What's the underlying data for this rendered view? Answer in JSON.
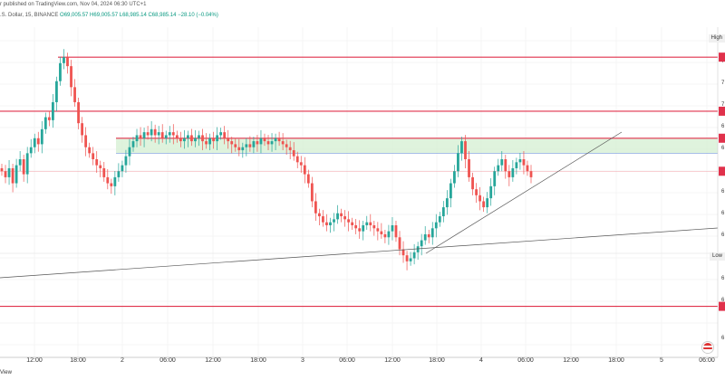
{
  "header": {
    "publisher": "r published on TradingView.com, Nov 04, 2024 06:30 UTC+1",
    "symbol": ".S. Dollar, 15, BINANCE",
    "ohlc": "O69,005.57 H69,005.57 L68,985.14 C68,985.14 −28.10 (−0.04%)"
  },
  "tags": {
    "high": "High",
    "low": "Low"
  },
  "right_axis_partial": [
    "7",
    "7",
    "7",
    "7",
    "6",
    "6",
    "6",
    "6",
    "6",
    "6",
    "6",
    "6",
    "6",
    "6"
  ],
  "footer": {
    "brand_partial": "View"
  },
  "icons": {
    "flag": "us-flag-icon"
  },
  "colors": {
    "bull": "#26a69a",
    "bear": "#ef5350",
    "level_line": "#e0314b",
    "zone_fill": "#d7f0d5",
    "trend_line": "#555555"
  },
  "chart_data": {
    "type": "candlestick",
    "x_tick_labels": [
      "12:00",
      "18:00",
      "2",
      "06:00",
      "12:00",
      "18:00",
      "3",
      "06:00",
      "12:00",
      "18:00",
      "4",
      "06:00",
      "12:00",
      "18:00",
      "5",
      "06:00"
    ],
    "price_scale": "relative",
    "closes": [
      62,
      60,
      63,
      58,
      64,
      66,
      61,
      68,
      70,
      73,
      71,
      76,
      80,
      79,
      85,
      92,
      98,
      100,
      97,
      90,
      85,
      78,
      74,
      70,
      68,
      66,
      64,
      63,
      60,
      58,
      57,
      60,
      62,
      64,
      67,
      70,
      72,
      74,
      73,
      75,
      74,
      76,
      74,
      75,
      73,
      74,
      75,
      74,
      73,
      72,
      73,
      74,
      72,
      73,
      74,
      72,
      71,
      73,
      72,
      74,
      75,
      73,
      72,
      71,
      70,
      69,
      70,
      71,
      70,
      72,
      71,
      73,
      72,
      71,
      72,
      73,
      72,
      71,
      70,
      69,
      67,
      65,
      64,
      61,
      58,
      52,
      48,
      47,
      45,
      44,
      45,
      46,
      48,
      47,
      46,
      45,
      44,
      43,
      42,
      44,
      45,
      44,
      43,
      42,
      41,
      40,
      42,
      44,
      40,
      36,
      34,
      32,
      33,
      35,
      37,
      39,
      41,
      40,
      43,
      45,
      47,
      50,
      53,
      58,
      62,
      68,
      72,
      66,
      60,
      56,
      54,
      52,
      50,
      53,
      57,
      62,
      64,
      66,
      62,
      60,
      63,
      65,
      66,
      64,
      62,
      60
    ],
    "levels": [
      {
        "style": "resistance",
        "value": 100
      },
      {
        "style": "resistance",
        "value": 82
      },
      {
        "style": "resistance",
        "value": 73
      },
      {
        "style": "resistance",
        "value": 17
      }
    ],
    "zone": {
      "from": 68,
      "to": 73
    },
    "markers": {
      "high": "High",
      "low": "Low"
    }
  }
}
